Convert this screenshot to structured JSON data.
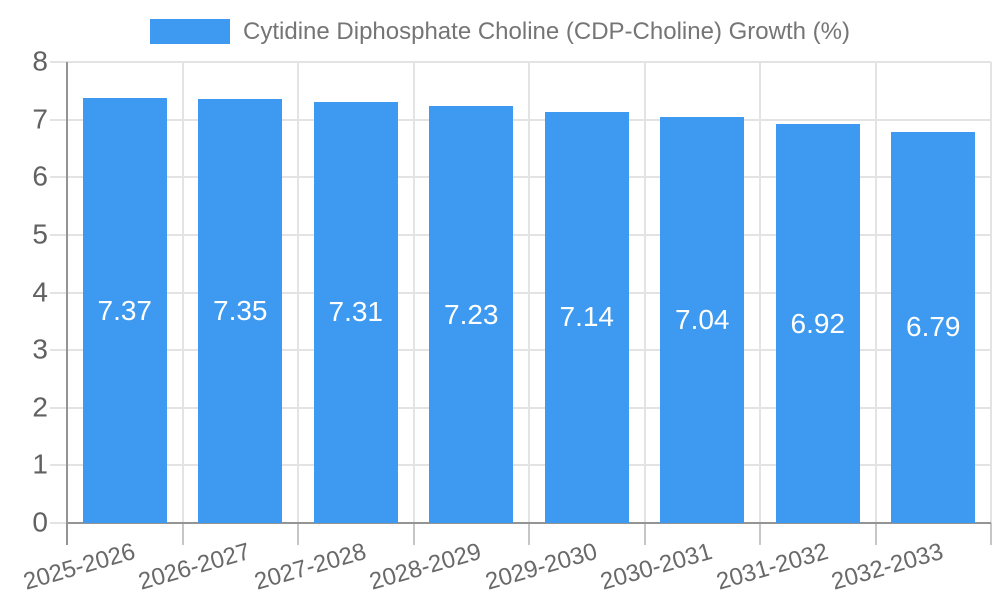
{
  "chart_data": {
    "type": "bar",
    "title": "Cytidine Diphosphate Choline (CDP-Choline) Growth (%)",
    "categories": [
      "2025-2026",
      "2026-2027",
      "2027-2028",
      "2028-2029",
      "2029-2030",
      "2030-2031",
      "2031-2032",
      "2032-2033"
    ],
    "values": [
      7.37,
      7.35,
      7.31,
      7.23,
      7.14,
      7.04,
      6.92,
      6.79
    ],
    "value_labels": [
      "7.37",
      "7.35",
      "7.31",
      "7.23",
      "7.14",
      "7.04",
      "6.92",
      "6.79"
    ],
    "series": [
      {
        "name": "Cytidine Diphosphate Choline (CDP-Choline) Growth (%)",
        "values": [
          7.37,
          7.35,
          7.31,
          7.23,
          7.14,
          7.04,
          6.92,
          6.79
        ]
      }
    ],
    "xlabel": "",
    "ylabel": "",
    "ylim": [
      0,
      8
    ],
    "y_ticks": [
      0,
      1,
      2,
      3,
      4,
      5,
      6,
      7,
      8
    ],
    "grid": true,
    "legend_position": "top",
    "colors": {
      "bar": "#3D9AF0",
      "gridline": "#E3E3E3",
      "axis": "#949494",
      "x_tick": "#C6C6C6",
      "tick_label": "#616161",
      "x_label": "#696969",
      "legend_text": "#757575",
      "value_label": "#FFFFFF",
      "background": "#FFFFFF"
    }
  }
}
